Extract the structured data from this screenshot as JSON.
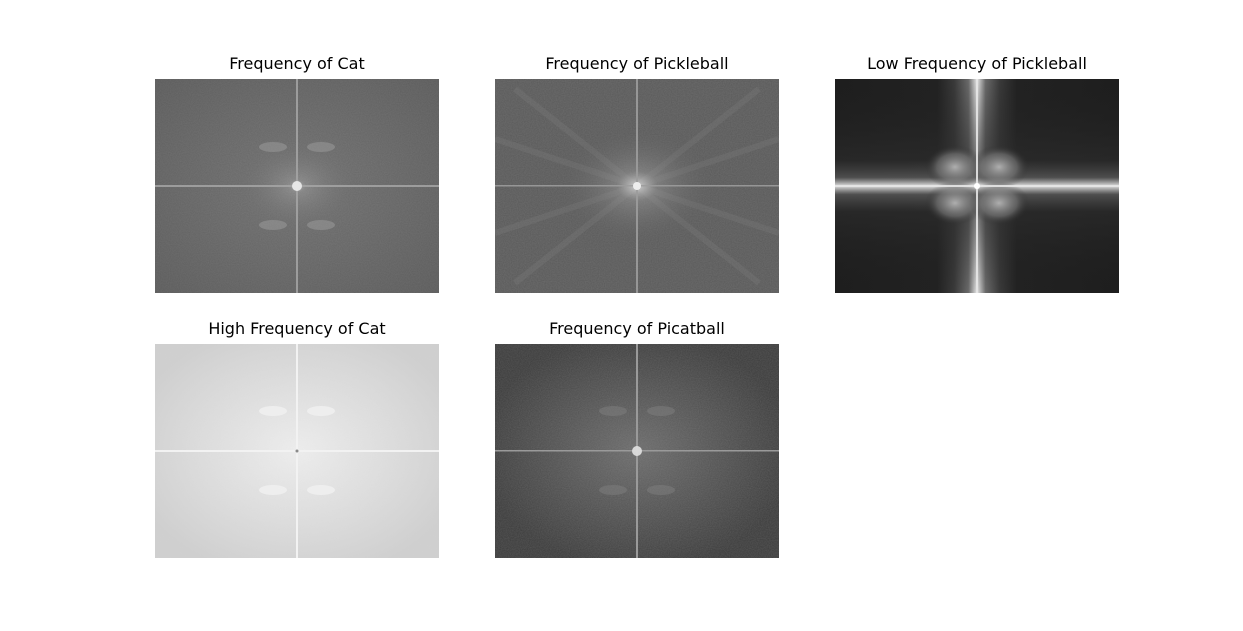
{
  "figure": {
    "panels": [
      {
        "title": "Frequency of Cat",
        "style": "cat",
        "background": "#6a6a6a",
        "center_glow": "#d8d8d8",
        "axis_line": "#b0b0b0"
      },
      {
        "title": "Frequency of Pickleball",
        "style": "pickleball",
        "background": "#5c5c5c",
        "center_glow": "#cfcfcf",
        "axis_line": "#a8a8a8"
      },
      {
        "title": "Low Frequency of Pickleball",
        "style": "lowpass",
        "background": "#1e1e1e",
        "center_glow": "#bdbdbd",
        "axis_line": "#e0e0e0"
      },
      {
        "title": "High Frequency of Cat",
        "style": "highpass",
        "background": "#d9d9d9",
        "center_glow": "#efefef",
        "axis_line": "#eeeeee"
      },
      {
        "title": "Frequency of Picatball",
        "style": "hybrid",
        "background": "#4a4a4a",
        "center_glow": "#dcdcdc",
        "axis_line": "#9a9a9a"
      }
    ]
  }
}
